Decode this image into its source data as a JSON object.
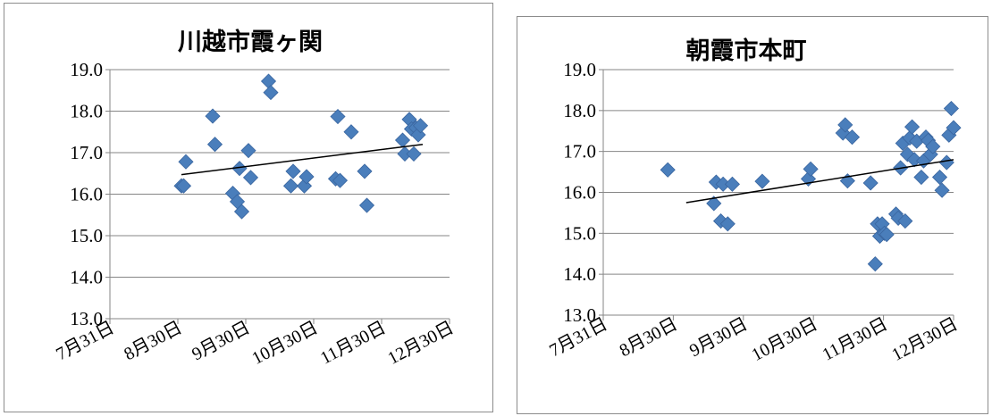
{
  "colors": {
    "marker": "#4a7ebb",
    "marker_stroke": "#3a66a0",
    "axis": "#868686",
    "trend": "#000000"
  },
  "chart_data": [
    {
      "type": "scatter",
      "title": "川越市霞ヶ関",
      "xlabel": "",
      "ylabel": "",
      "x_ticks": [
        "7月31日",
        "8月30日",
        "9月30日",
        "10月30日",
        "11月30日",
        "12月30日"
      ],
      "y_ticks": [
        "13.0",
        "14.0",
        "15.0",
        "16.0",
        "17.0",
        "18.0",
        "19.0"
      ],
      "xlim": [
        "2000-07-31",
        "2000-12-30"
      ],
      "ylim": [
        13.0,
        19.0
      ],
      "grid": {
        "horizontal": true,
        "vertical": false
      },
      "legend": "none",
      "trendline": {
        "type": "linear",
        "from": [
          "2000-09-01",
          16.47
        ],
        "to": [
          "2000-12-18",
          17.2
        ]
      },
      "series": [
        {
          "points": [
            [
              "2000-09-01",
              16.2
            ],
            [
              "2000-09-02",
              16.2
            ],
            [
              "2000-09-03",
              16.78
            ],
            [
              "2000-09-15",
              17.88
            ],
            [
              "2000-09-16",
              17.2
            ],
            [
              "2000-09-24",
              16.02
            ],
            [
              "2000-09-26",
              15.82
            ],
            [
              "2000-09-27",
              16.62
            ],
            [
              "2000-09-28",
              15.58
            ],
            [
              "2000-10-01",
              17.05
            ],
            [
              "2000-10-02",
              16.4
            ],
            [
              "2000-10-10",
              18.72
            ],
            [
              "2000-10-11",
              18.45
            ],
            [
              "2000-10-20",
              16.2
            ],
            [
              "2000-10-21",
              16.55
            ],
            [
              "2000-10-26",
              16.2
            ],
            [
              "2000-10-27",
              16.42
            ],
            [
              "2000-11-09",
              16.37
            ],
            [
              "2000-11-10",
              17.87
            ],
            [
              "2000-11-11",
              16.33
            ],
            [
              "2000-11-16",
              17.5
            ],
            [
              "2000-11-22",
              16.55
            ],
            [
              "2000-11-23",
              15.73
            ],
            [
              "2000-12-09",
              17.3
            ],
            [
              "2000-12-10",
              16.97
            ],
            [
              "2000-12-12",
              17.8
            ],
            [
              "2000-12-13",
              17.57
            ],
            [
              "2000-12-14",
              16.97
            ],
            [
              "2000-12-15",
              17.6
            ],
            [
              "2000-12-16",
              17.43
            ],
            [
              "2000-12-17",
              17.65
            ]
          ]
        }
      ]
    },
    {
      "type": "scatter",
      "title": "朝霞市本町",
      "xlabel": "",
      "ylabel": "",
      "x_ticks": [
        "7月31日",
        "8月30日",
        "9月30日",
        "10月30日",
        "11月30日",
        "12月30日"
      ],
      "y_ticks": [
        "13.0",
        "14.0",
        "15.0",
        "16.0",
        "17.0",
        "18.0",
        "19.0"
      ],
      "xlim": [
        "2000-07-31",
        "2000-12-30"
      ],
      "ylim": [
        13.0,
        19.0
      ],
      "grid": {
        "horizontal": true,
        "vertical": false
      },
      "legend": "none",
      "trendline": {
        "type": "linear",
        "from": [
          "2000-09-05",
          15.75
        ],
        "to": [
          "2000-12-30",
          16.8
        ]
      },
      "series": [
        {
          "points": [
            [
              "2000-08-28",
              16.55
            ],
            [
              "2000-09-17",
              15.73
            ],
            [
              "2000-09-18",
              16.25
            ],
            [
              "2000-09-20",
              15.3
            ],
            [
              "2000-09-21",
              16.2
            ],
            [
              "2000-09-23",
              15.23
            ],
            [
              "2000-09-25",
              16.2
            ],
            [
              "2000-10-08",
              16.27
            ],
            [
              "2000-10-28",
              16.33
            ],
            [
              "2000-10-29",
              16.57
            ],
            [
              "2000-11-12",
              17.45
            ],
            [
              "2000-11-13",
              17.65
            ],
            [
              "2000-11-14",
              16.28
            ],
            [
              "2000-11-16",
              17.35
            ],
            [
              "2000-11-24",
              16.23
            ],
            [
              "2000-11-26",
              14.25
            ],
            [
              "2000-11-27",
              15.23
            ],
            [
              "2000-11-28",
              14.93
            ],
            [
              "2000-11-29",
              15.23
            ],
            [
              "2000-11-30",
              15.0
            ],
            [
              "2000-12-01",
              14.97
            ],
            [
              "2000-12-05",
              15.47
            ],
            [
              "2000-12-06",
              15.37
            ],
            [
              "2000-12-07",
              16.6
            ],
            [
              "2000-12-08",
              17.2
            ],
            [
              "2000-12-09",
              15.3
            ],
            [
              "2000-12-10",
              16.93
            ],
            [
              "2000-12-11",
              17.33
            ],
            [
              "2000-12-12",
              17.6
            ],
            [
              "2000-12-13",
              16.8
            ],
            [
              "2000-12-14",
              17.25
            ],
            [
              "2000-12-16",
              16.37
            ],
            [
              "2000-12-17",
              16.77
            ],
            [
              "2000-12-18",
              17.35
            ],
            [
              "2000-12-19",
              17.27
            ],
            [
              "2000-12-20",
              16.93
            ],
            [
              "2000-12-21",
              17.12
            ],
            [
              "2000-12-24",
              16.37
            ],
            [
              "2000-12-25",
              16.05
            ],
            [
              "2000-12-27",
              16.73
            ],
            [
              "2000-12-28",
              17.4
            ],
            [
              "2000-12-29",
              18.05
            ],
            [
              "2000-12-30",
              17.58
            ]
          ]
        }
      ]
    }
  ]
}
